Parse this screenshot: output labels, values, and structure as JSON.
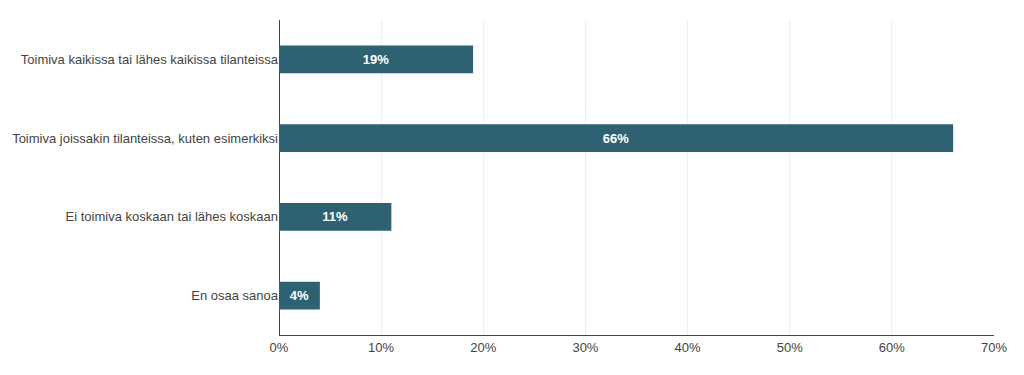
{
  "chart_data": {
    "type": "bar",
    "orientation": "horizontal",
    "categories": [
      "Toimiva kaikissa tai lähes kaikissa tilanteissa",
      "Toimiva joissakin tilanteissa, kuten esimerkiksi",
      "Ei toimiva koskaan tai lähes koskaan",
      "En osaa sanoa"
    ],
    "values": [
      0.19,
      0.66,
      0.11,
      0.04
    ],
    "value_labels": [
      "19%",
      "66%",
      "11%",
      "4%"
    ],
    "data_labels": true,
    "color": "#2e6272",
    "xlim": [
      0,
      0.7
    ],
    "xticks": [
      {
        "value": 0.0,
        "label": "0%"
      },
      {
        "value": 0.1,
        "label": "10%"
      },
      {
        "value": 0.2,
        "label": "20%"
      },
      {
        "value": 0.3,
        "label": "30%"
      },
      {
        "value": 0.4,
        "label": "40%"
      },
      {
        "value": 0.5,
        "label": "50%"
      },
      {
        "value": 0.6,
        "label": "60%"
      },
      {
        "value": 0.7,
        "label": "70%"
      }
    ],
    "grid": true
  }
}
